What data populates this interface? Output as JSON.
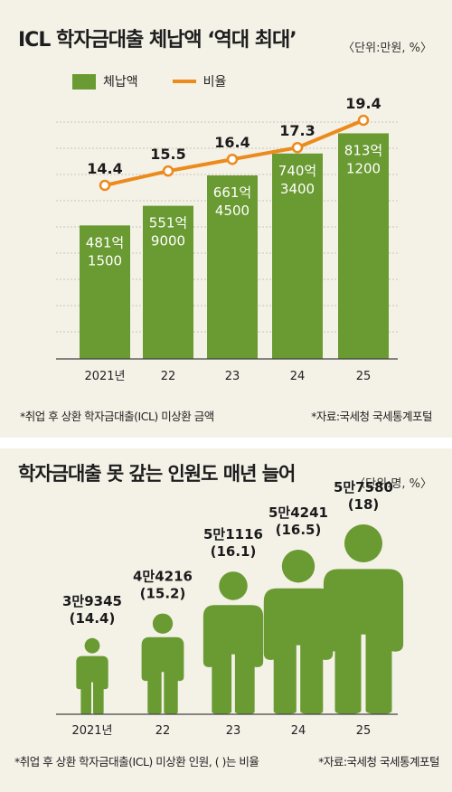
{
  "section1": {
    "title": "ICL 학자금대출 체납액 ‘역대 최대’",
    "unit": "〈단위:만원, %〉",
    "legend_bar": "체납액",
    "legend_line": "비율",
    "note_left": "*취업 후 상환 학자금대출(ICL) 미상환 금액",
    "note_right": "*자료:국세청 국세통계포털"
  },
  "section2": {
    "title": "학자금대출 못 갚는 인원도 매년 늘어",
    "unit": "〈단위:명, %〉",
    "note_left": "*취업 후 상환 학자금대출(ICL) 미상환 인원, (  )는 비율",
    "note_right": "*자료:국세청 국세통계포털"
  },
  "colors": {
    "bar": "#6a9a32",
    "line": "#ec8a1c",
    "person": "#6a9a32",
    "background": "#f4f1e7"
  },
  "chart_data": [
    {
      "type": "bar",
      "categories": [
        "2021년",
        "22",
        "23",
        "24",
        "25"
      ],
      "series": [
        {
          "name": "체납액",
          "values": [
            4811500,
            5519000,
            6614500,
            7403400,
            8131200
          ],
          "labels": [
            [
              "481억",
              "1500"
            ],
            [
              "551억",
              "9000"
            ],
            [
              "661억",
              "4500"
            ],
            [
              "740억",
              "3400"
            ],
            [
              "813억",
              "1200"
            ]
          ]
        },
        {
          "name": "비율",
          "type": "line",
          "values": [
            14.4,
            15.5,
            16.4,
            17.3,
            19.4
          ],
          "labels": [
            "14.4",
            "15.5",
            "16.4",
            "17.3",
            "19.4"
          ]
        }
      ],
      "grid": true
    },
    {
      "type": "pictogram",
      "categories": [
        "2021년",
        "22",
        "23",
        "24",
        "25"
      ],
      "values": [
        39345,
        44216,
        51116,
        54241,
        57580
      ],
      "ratio": [
        14.4,
        15.2,
        16.1,
        16.5,
        18
      ],
      "labels": [
        [
          "3만9345",
          "(14.4)"
        ],
        [
          "4만4216",
          "(15.2)"
        ],
        [
          "5만1116",
          "(16.1)"
        ],
        [
          "5만4241",
          "(16.5)"
        ],
        [
          "5만7580",
          "(18)"
        ]
      ]
    }
  ]
}
